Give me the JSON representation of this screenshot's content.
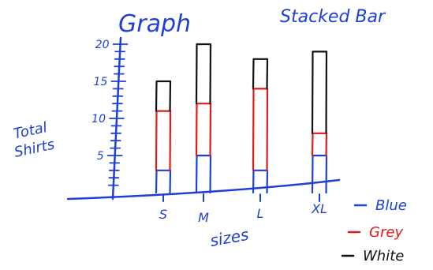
{
  "colors": {
    "ink_blue": "#1f3fd6",
    "red": "#e01a1a",
    "black": "#111111",
    "background": "#ffffff"
  },
  "chart_data": {
    "type": "bar",
    "stacked": true,
    "title": "Graph",
    "subtitle": "Stacked Bar",
    "xlabel": "sizes",
    "ylabel_line1": "Total",
    "ylabel_line2": "Shirts",
    "categories": [
      "S",
      "M",
      "L",
      "XL"
    ],
    "ylim": [
      0,
      20
    ],
    "yticks": [
      5,
      10,
      15,
      20
    ],
    "series": [
      {
        "name": "Blue",
        "values": [
          3,
          5,
          3,
          5
        ],
        "color": "#1f3fd6"
      },
      {
        "name": "Grey",
        "values": [
          8,
          7,
          11,
          3
        ],
        "color": "#e01a1a"
      },
      {
        "name": "White",
        "values": [
          4,
          8,
          4,
          11
        ],
        "color": "#111111"
      }
    ],
    "legend_placement": "bottom-right",
    "grid": false
  }
}
